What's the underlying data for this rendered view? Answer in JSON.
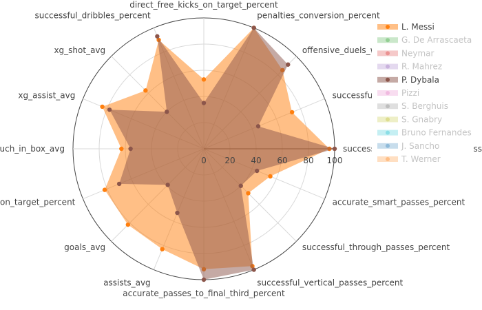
{
  "chart_data": {
    "type": "radar",
    "title": "",
    "radial_range": [
      0,
      100
    ],
    "radial_ticks": [
      "0",
      "20",
      "40",
      "60",
      "80",
      "100"
    ],
    "axes": [
      "direct_free_kicks_on_target_percent",
      "penalties_conversion_percent",
      "offensive_duels_won_percent",
      "successful_attacking_actions_percent",
      "successful_forward_passes_percent",
      "accurate_smart_passes_percent",
      "successful_through_passes_percent",
      "successful_vertical_passes_percent",
      "accurate_passes_to_final_third_percent",
      "assists_avg",
      "goals_avg",
      "shots_on_target_percent",
      "touch_in_box_avg",
      "xg_assist_avg",
      "xg_shot_avg",
      "successful_dribbles_percent"
    ],
    "axis_labels_shown": [
      "direct_free_kicks_on_target_percent",
      "penalties_conversion_percent",
      "offensive_duels_w",
      "successful",
      "successful_forward_passes_percent",
      "accurate_smart_passes_percent",
      "successful_through_passes_percent",
      "successful_vertical_passes_percent",
      "accurate_passes_to_final_third_percent",
      "assists_avg",
      "goals_avg",
      "on_target_percent",
      "uch_in_box_avg",
      "xg_assist_avg",
      "xg_shot_avg",
      "successful_dribbles_percent"
    ],
    "series": [
      {
        "name": "L. Messi",
        "color": "#ff7f0e",
        "visible": true,
        "values": [
          53,
          100,
          85,
          73,
          96,
          55,
          48,
          97,
          92,
          83,
          82,
          82,
          63,
          84,
          63,
          90
        ]
      },
      {
        "name": "P. Dybala",
        "color": "#8c564b",
        "visible": true,
        "values": [
          35,
          100,
          91,
          45,
          100,
          44,
          40,
          100,
          100,
          53,
          39,
          70,
          56,
          78,
          40,
          93
        ]
      }
    ],
    "legend": {
      "placement": "right",
      "items": [
        {
          "name": "L. Messi",
          "color": "#ff7f0e",
          "active": true
        },
        {
          "name": "G. De Arrascaeta",
          "color": "#2ca02c",
          "active": false
        },
        {
          "name": "Neymar",
          "color": "#d62728",
          "active": false
        },
        {
          "name": "R. Mahrez",
          "color": "#9467bd",
          "active": false
        },
        {
          "name": "P. Dybala",
          "color": "#8c564b",
          "active": true
        },
        {
          "name": "Pizzi",
          "color": "#e377c2",
          "active": false
        },
        {
          "name": "S. Berghuis",
          "color": "#7f7f7f",
          "active": false
        },
        {
          "name": "S. Gnabry",
          "color": "#bcbd22",
          "active": false
        },
        {
          "name": "Bruno Fernandes",
          "color": "#17becf",
          "active": false
        },
        {
          "name": "J. Sancho",
          "color": "#1f77b4",
          "active": false
        },
        {
          "name": "T. Werner",
          "color": "#ff7f0e",
          "active": false
        }
      ]
    },
    "grid": true
  }
}
